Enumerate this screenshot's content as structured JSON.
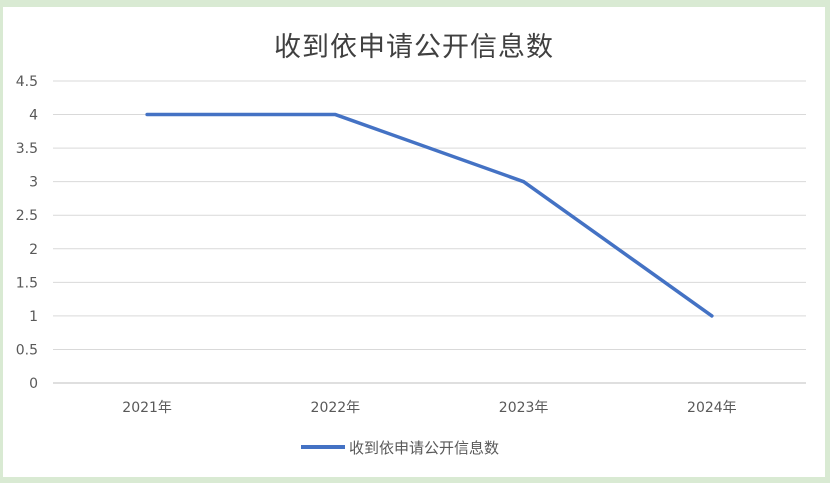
{
  "chart_data": {
    "type": "line",
    "title": "收到依申请公开信息数",
    "categories": [
      "2021年",
      "2022年",
      "2023年",
      "2024年"
    ],
    "series": [
      {
        "name": "收到依申请公开信息数",
        "values": [
          4,
          4,
          3,
          1
        ],
        "color": "#4472c4"
      }
    ],
    "y_ticks": [
      "0",
      "0.5",
      "1",
      "1.5",
      "2",
      "2.5",
      "3",
      "3.5",
      "4",
      "4.5"
    ],
    "ylim": [
      0,
      4.5
    ],
    "grid": true,
    "legend": "bottom"
  }
}
